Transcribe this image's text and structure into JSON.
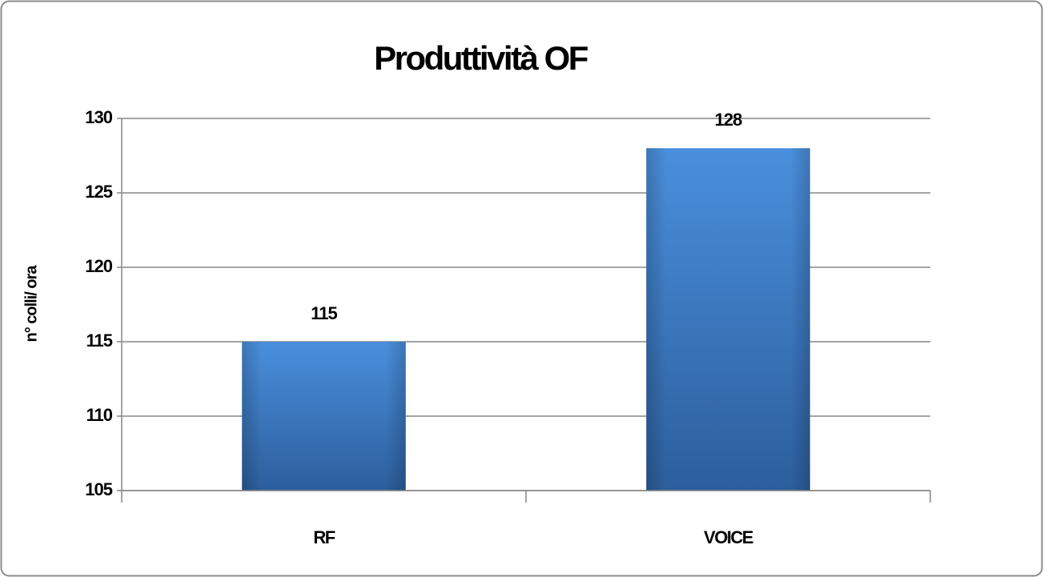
{
  "chart_data": {
    "type": "bar",
    "title": "Produttività OF",
    "y_label": "n° colli/ ora",
    "categories": [
      "RF",
      "VOICE"
    ],
    "values": [
      115,
      128
    ],
    "color": "#3a78c4",
    "ylim": [
      105,
      130
    ],
    "yticks": [
      105,
      110,
      115,
      120,
      125,
      130
    ],
    "grid": true
  }
}
